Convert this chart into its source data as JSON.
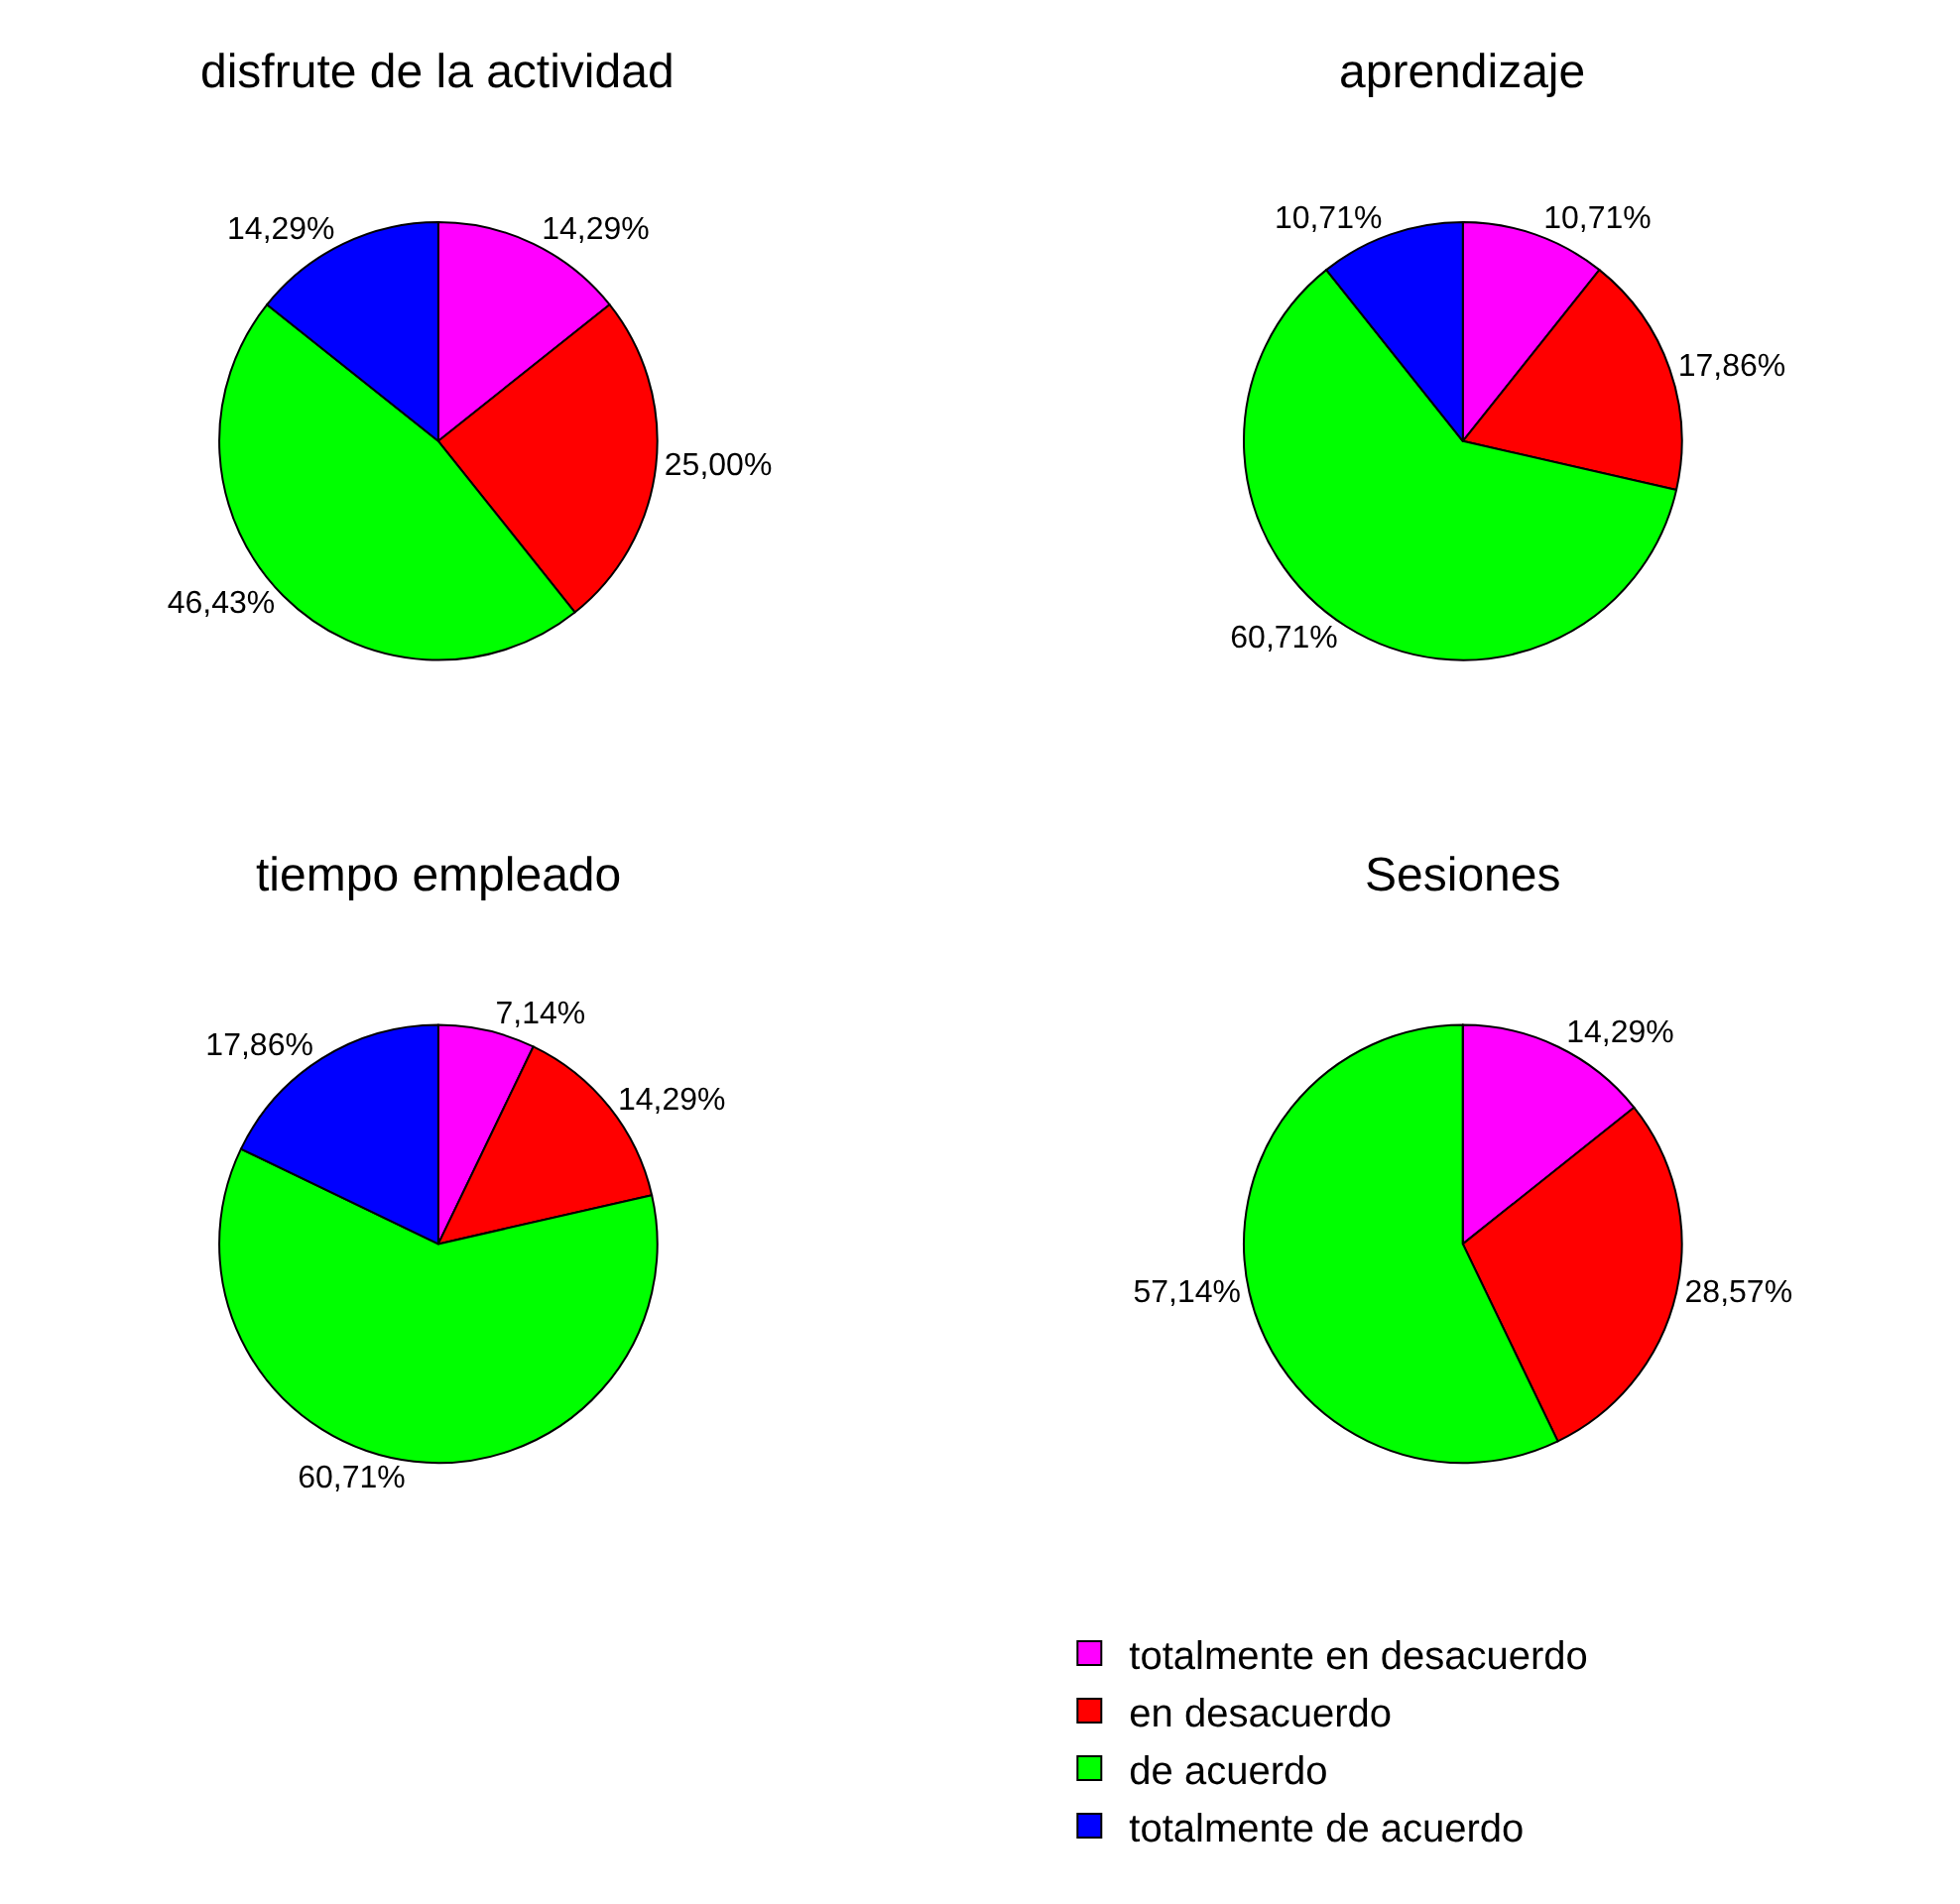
{
  "chart_data": [
    {
      "type": "pie",
      "title": "disfrute de la actividad",
      "categories": [
        "totalmente en desacuerdo",
        "en desacuerdo",
        "de acuerdo",
        "totalmente de acuerdo"
      ],
      "values": [
        14.29,
        25.0,
        46.43,
        14.29
      ],
      "value_labels": [
        "14,29%",
        "25,00%",
        "46,43%",
        "14,29%"
      ],
      "colors": [
        "#ff00ff",
        "#ff0000",
        "#00ff00",
        "#0000ff"
      ],
      "legend": "bottom right"
    },
    {
      "type": "pie",
      "title": "aprendizaje",
      "values": [
        10.71,
        17.86,
        60.71,
        10.71
      ],
      "value_labels": [
        "10,71%",
        "17,86%",
        "60,71%",
        "10,71%"
      ],
      "colors": [
        "#ff00ff",
        "#ff0000",
        "#00ff00",
        "#0000ff"
      ]
    },
    {
      "type": "pie",
      "title": "tiempo empleado",
      "values": [
        7.14,
        14.29,
        60.71,
        17.86
      ],
      "value_labels": [
        "7,14%",
        "14,29%",
        "60,71%",
        "17,86%"
      ],
      "colors": [
        "#ff00ff",
        "#ff0000",
        "#00ff00",
        "#0000ff"
      ]
    },
    {
      "type": "pie",
      "title": "Sesiones",
      "values": [
        14.29,
        28.57,
        57.14,
        0
      ],
      "value_labels": [
        "14,29%",
        "28,57%",
        "57,14%",
        null
      ],
      "colors": [
        "#ff00ff",
        "#ff0000",
        "#00ff00",
        "#0000ff"
      ]
    }
  ]
}
